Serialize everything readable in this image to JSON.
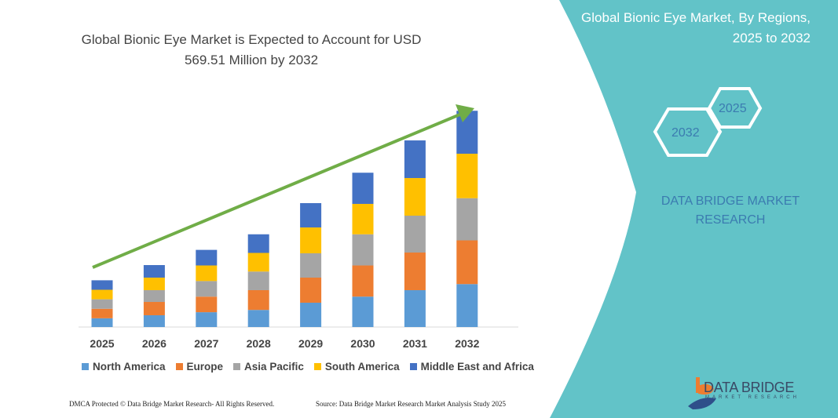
{
  "title": "Global Bionic Eye Market is Expected to Account for USD 569.51 Million by 2032",
  "side_panel": {
    "title": "Global Bionic Eye Market, By Regions, 2025 to 2032",
    "hex_start": "2025",
    "hex_end": "2032",
    "brand": "DATA BRIDGE MARKET RESEARCH",
    "logo_text": "DATA BRIDGE",
    "logo_sub": "MARKET RESEARCH",
    "panel_color": "#62c3c8"
  },
  "footer": {
    "left": "DMCA Protected © Data Bridge Market Research- All Rights Reserved.",
    "right": "Source: Data Bridge Market Research Market Analysis Study 2025"
  },
  "chart_data": {
    "type": "bar",
    "stacked": true,
    "categories": [
      "2025",
      "2026",
      "2027",
      "2028",
      "2029",
      "2030",
      "2031",
      "2032"
    ],
    "series": [
      {
        "name": "North America",
        "color": "#5b9bd5",
        "values": [
          23,
          31,
          39,
          45,
          64,
          80,
          97,
          113
        ]
      },
      {
        "name": "Europe",
        "color": "#ed7d31",
        "values": [
          25,
          35,
          41,
          52,
          66,
          82,
          99,
          115
        ]
      },
      {
        "name": "Asia Pacific",
        "color": "#a5a5a5",
        "values": [
          25,
          31,
          41,
          49,
          64,
          82,
          97,
          111
        ]
      },
      {
        "name": "South America",
        "color": "#ffc000",
        "values": [
          25,
          33,
          41,
          49,
          68,
          80,
          99,
          117
        ]
      },
      {
        "name": "Middle East and Africa",
        "color": "#4472c4",
        "values": [
          25,
          33,
          41,
          49,
          64,
          82,
          99,
          113
        ]
      }
    ],
    "ylim": [
      0,
      569.51
    ],
    "grid": false,
    "legend": "bottom",
    "trend_arrow_color": "#70ad47"
  }
}
